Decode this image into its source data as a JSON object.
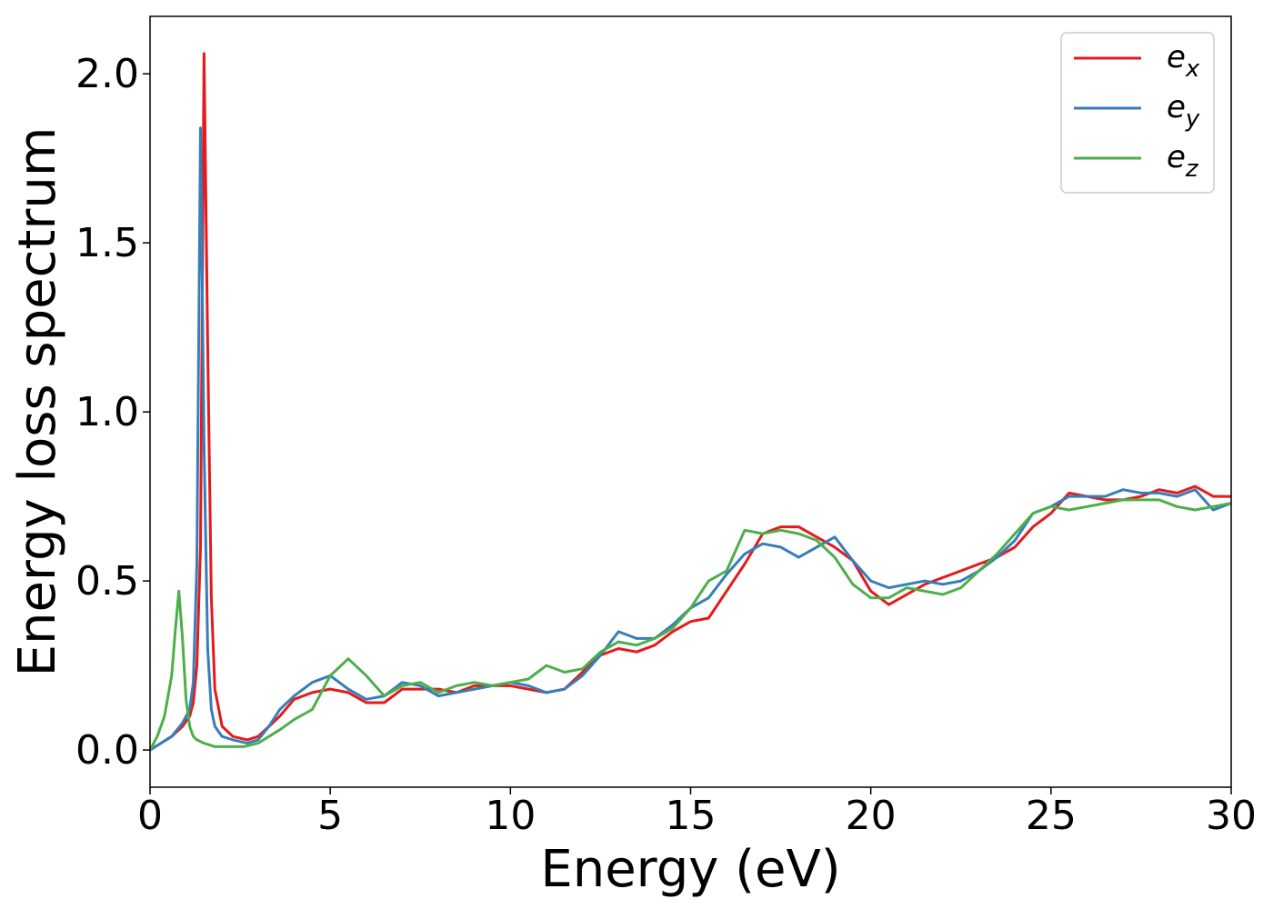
{
  "chart_data": {
    "type": "line",
    "title": "",
    "xlabel": "Energy (eV)",
    "ylabel": "Energy loss spectrum",
    "xlim": [
      0,
      30
    ],
    "ylim": [
      -0.11,
      2.17
    ],
    "xticks": [
      0,
      5,
      10,
      15,
      20,
      25,
      30
    ],
    "xtick_labels": [
      "0",
      "5",
      "10",
      "15",
      "20",
      "25",
      "30"
    ],
    "yticks": [
      0.0,
      0.5,
      1.0,
      1.5,
      2.0
    ],
    "ytick_labels": [
      "0.0",
      "0.5",
      "1.0",
      "1.5",
      "2.0"
    ],
    "grid": false,
    "legend_position": "top-right",
    "series": [
      {
        "name": "e",
        "subscript": "x",
        "color": "#e41a1c",
        "x": [
          0,
          0.3,
          0.6,
          0.9,
          1.1,
          1.2,
          1.3,
          1.4,
          1.5,
          1.6,
          1.7,
          1.8,
          2.0,
          2.3,
          2.7,
          3.0,
          3.3,
          3.6,
          4.0,
          4.5,
          5.0,
          5.5,
          6.0,
          6.5,
          7.0,
          7.5,
          8.0,
          8.5,
          9.0,
          9.5,
          10.0,
          10.5,
          11.0,
          11.5,
          12.0,
          12.5,
          13.0,
          13.5,
          14.0,
          14.5,
          15.0,
          15.5,
          16.0,
          16.5,
          17.0,
          17.5,
          18.0,
          18.5,
          19.0,
          19.5,
          20.0,
          20.5,
          21.0,
          21.5,
          22.0,
          22.5,
          23.0,
          23.5,
          24.0,
          24.5,
          25.0,
          25.5,
          26.0,
          26.5,
          27.0,
          27.5,
          28.0,
          28.5,
          29.0,
          29.5,
          30.0
        ],
        "y": [
          0.0,
          0.02,
          0.04,
          0.07,
          0.1,
          0.14,
          0.25,
          0.6,
          2.06,
          1.2,
          0.45,
          0.18,
          0.07,
          0.04,
          0.03,
          0.04,
          0.07,
          0.1,
          0.15,
          0.17,
          0.18,
          0.17,
          0.14,
          0.14,
          0.18,
          0.18,
          0.18,
          0.17,
          0.19,
          0.19,
          0.19,
          0.18,
          0.17,
          0.18,
          0.23,
          0.28,
          0.3,
          0.29,
          0.31,
          0.35,
          0.38,
          0.39,
          0.47,
          0.55,
          0.64,
          0.66,
          0.66,
          0.63,
          0.6,
          0.56,
          0.47,
          0.43,
          0.46,
          0.49,
          0.51,
          0.53,
          0.55,
          0.57,
          0.6,
          0.66,
          0.7,
          0.76,
          0.75,
          0.74,
          0.74,
          0.75,
          0.77,
          0.76,
          0.78,
          0.75,
          0.75
        ]
      },
      {
        "name": "e",
        "subscript": "y",
        "color": "#377eb8",
        "x": [
          0,
          0.3,
          0.6,
          0.9,
          1.1,
          1.2,
          1.3,
          1.35,
          1.4,
          1.5,
          1.6,
          1.7,
          1.8,
          2.0,
          2.3,
          2.7,
          3.0,
          3.3,
          3.6,
          4.0,
          4.5,
          5.0,
          5.5,
          6.0,
          6.5,
          7.0,
          7.5,
          8.0,
          8.5,
          9.0,
          9.5,
          10.0,
          10.5,
          11.0,
          11.5,
          12.0,
          12.5,
          13.0,
          13.5,
          14.0,
          14.5,
          15.0,
          15.5,
          16.0,
          16.5,
          17.0,
          17.5,
          18.0,
          18.5,
          19.0,
          19.5,
          20.0,
          20.5,
          21.0,
          21.5,
          22.0,
          22.5,
          23.0,
          23.5,
          24.0,
          24.5,
          25.0,
          25.5,
          26.0,
          26.5,
          27.0,
          27.5,
          28.0,
          28.5,
          29.0,
          29.5,
          30.0
        ],
        "y": [
          0.0,
          0.02,
          0.04,
          0.08,
          0.12,
          0.2,
          0.55,
          1.2,
          1.84,
          0.9,
          0.3,
          0.12,
          0.07,
          0.04,
          0.03,
          0.02,
          0.03,
          0.07,
          0.12,
          0.16,
          0.2,
          0.22,
          0.18,
          0.15,
          0.16,
          0.2,
          0.19,
          0.16,
          0.17,
          0.18,
          0.19,
          0.2,
          0.19,
          0.17,
          0.18,
          0.22,
          0.28,
          0.35,
          0.33,
          0.33,
          0.37,
          0.42,
          0.45,
          0.52,
          0.58,
          0.61,
          0.6,
          0.57,
          0.6,
          0.63,
          0.56,
          0.5,
          0.48,
          0.49,
          0.5,
          0.49,
          0.5,
          0.53,
          0.57,
          0.62,
          0.7,
          0.72,
          0.75,
          0.75,
          0.75,
          0.77,
          0.76,
          0.76,
          0.75,
          0.77,
          0.71,
          0.73
        ]
      },
      {
        "name": "e",
        "subscript": "z",
        "color": "#4daf4a",
        "x": [
          0,
          0.2,
          0.4,
          0.6,
          0.7,
          0.8,
          0.9,
          1.0,
          1.1,
          1.2,
          1.3,
          1.5,
          1.8,
          2.2,
          2.6,
          3.0,
          3.3,
          3.6,
          4.0,
          4.5,
          5.0,
          5.5,
          6.0,
          6.5,
          7.0,
          7.5,
          8.0,
          8.5,
          9.0,
          9.5,
          10.0,
          10.5,
          11.0,
          11.5,
          12.0,
          12.5,
          13.0,
          13.5,
          14.0,
          14.5,
          15.0,
          15.5,
          16.0,
          16.5,
          17.0,
          17.5,
          18.0,
          18.5,
          19.0,
          19.5,
          20.0,
          20.5,
          21.0,
          21.5,
          22.0,
          22.5,
          23.0,
          23.5,
          24.0,
          24.5,
          25.0,
          25.5,
          26.0,
          26.5,
          27.0,
          27.5,
          28.0,
          28.5,
          29.0,
          29.5,
          30.0
        ],
        "y": [
          0.0,
          0.04,
          0.1,
          0.22,
          0.35,
          0.47,
          0.33,
          0.15,
          0.07,
          0.04,
          0.03,
          0.02,
          0.01,
          0.01,
          0.01,
          0.02,
          0.04,
          0.06,
          0.09,
          0.12,
          0.22,
          0.27,
          0.22,
          0.16,
          0.19,
          0.2,
          0.17,
          0.19,
          0.2,
          0.19,
          0.2,
          0.21,
          0.25,
          0.23,
          0.24,
          0.29,
          0.32,
          0.31,
          0.33,
          0.36,
          0.42,
          0.5,
          0.53,
          0.65,
          0.64,
          0.65,
          0.64,
          0.62,
          0.57,
          0.49,
          0.45,
          0.45,
          0.48,
          0.47,
          0.46,
          0.48,
          0.53,
          0.58,
          0.64,
          0.7,
          0.72,
          0.71,
          0.72,
          0.73,
          0.74,
          0.74,
          0.74,
          0.72,
          0.71,
          0.72,
          0.73
        ]
      }
    ]
  }
}
